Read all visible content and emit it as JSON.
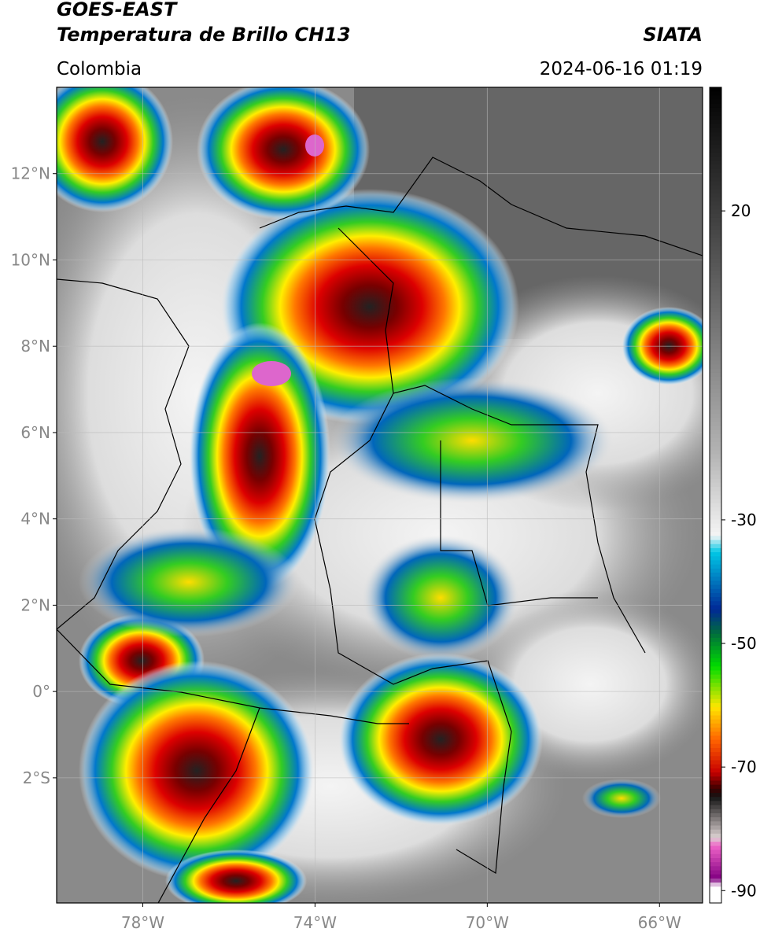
{
  "header": {
    "title_line_1": "GOES-EAST",
    "title_line_2": "Temperatura de Brillo CH13",
    "source": "SIATA",
    "region": "Colombia",
    "timestamp": "2024-06-16 01:19"
  },
  "map": {
    "xlim": [
      -80,
      -65
    ],
    "ylim": [
      -4.9,
      14
    ],
    "grid": true,
    "lat_ticks": [
      {
        "value": 12,
        "label": "12°N"
      },
      {
        "value": 10,
        "label": "10°N"
      },
      {
        "value": 8,
        "label": "8°N"
      },
      {
        "value": 6,
        "label": "6°N"
      },
      {
        "value": 4,
        "label": "4°N"
      },
      {
        "value": 2,
        "label": "2°N"
      },
      {
        "value": 0,
        "label": "0°"
      },
      {
        "value": -2,
        "label": "2°S"
      }
    ],
    "lon_ticks": [
      {
        "value": -78,
        "label": "78°W"
      },
      {
        "value": -74,
        "label": "74°W"
      },
      {
        "value": -70,
        "label": "70°W"
      },
      {
        "value": -66,
        "label": "66°W"
      }
    ]
  },
  "colorbar": {
    "lim": [
      -92,
      40
    ],
    "ticks": [
      20,
      -30,
      -50,
      -70,
      -90
    ]
  }
}
